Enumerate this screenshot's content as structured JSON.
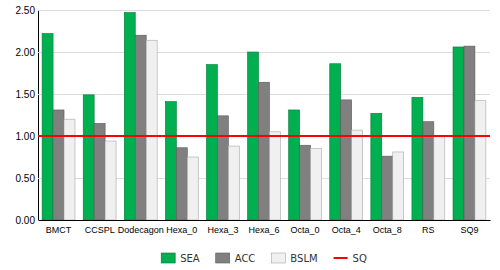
{
  "chart_data": {
    "type": "bar",
    "categories": [
      "BMCT",
      "CCSPL",
      "Dodecagon",
      "Hexa_0",
      "Hexa_3",
      "Hexa_6",
      "Octa_0",
      "Octa_4",
      "Octa_8",
      "RS",
      "SQ9"
    ],
    "series": [
      {
        "name": "SEA",
        "color": "#00b050",
        "values": [
          2.22,
          1.49,
          2.47,
          1.41,
          1.85,
          2.0,
          1.31,
          1.86,
          1.27,
          1.46,
          2.06
        ]
      },
      {
        "name": "ACC",
        "color": "#808080",
        "values": [
          1.31,
          1.15,
          2.2,
          0.86,
          1.24,
          1.64,
          0.89,
          1.43,
          0.76,
          1.17,
          2.07
        ]
      },
      {
        "name": "BSLM",
        "color": "#f0f0f0",
        "values": [
          1.2,
          0.94,
          2.14,
          0.75,
          0.88,
          1.05,
          0.85,
          1.07,
          0.81,
          1.0,
          1.42
        ]
      }
    ],
    "reference_lines": [
      {
        "name": "SQ",
        "value": 1.0,
        "color": "#ff0000"
      }
    ],
    "ylim": [
      0.0,
      2.5
    ],
    "yticks": [
      {
        "value": 0.0,
        "label": "0.00"
      },
      {
        "value": 0.5,
        "label": "0.50"
      },
      {
        "value": 1.0,
        "label": "1.00"
      },
      {
        "value": 1.5,
        "label": "1.50"
      },
      {
        "value": 2.0,
        "label": "2.00"
      },
      {
        "value": 2.5,
        "label": "2.50"
      }
    ],
    "grid": true,
    "legend": "bottom"
  }
}
